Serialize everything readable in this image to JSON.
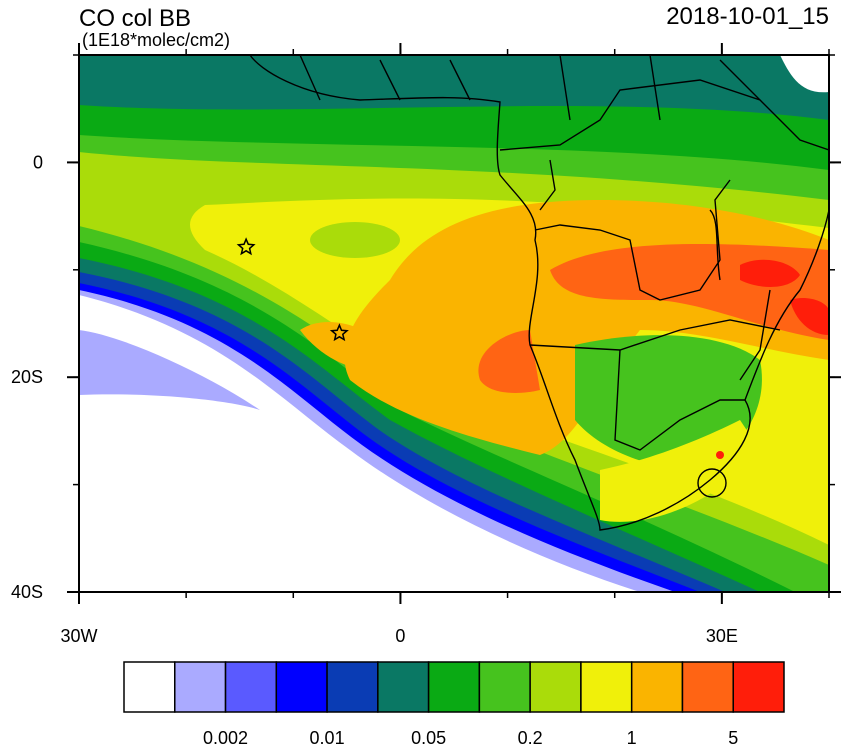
{
  "map": {
    "title": "CO col BB",
    "units": "(1E18*molec/cm2)",
    "date": "2018-10-01_15",
    "xlim": [
      -30,
      40
    ],
    "ylim": [
      -40,
      10
    ],
    "xticks": [
      {
        "value": -30,
        "label": "30W"
      },
      0,
      {
        "value": 30,
        "label": "30E"
      }
    ],
    "yticks": [
      0,
      {
        "value": -20,
        "label": "20S"
      },
      {
        "value": -40,
        "label": "40S"
      }
    ],
    "minor_ticks_step": 10,
    "markers": [
      {
        "lon": -14.4,
        "lat": -7.9
      },
      {
        "lon": -5.7,
        "lat": -15.9
      }
    ],
    "colorbar": {
      "colors": [
        "#ffffff",
        "#aaaaff",
        "#5a5aff",
        "#0000ff",
        "#0a3cb4",
        "#0a7864",
        "#0aaa14",
        "#46c31e",
        "#aadc0a",
        "#f0f00a",
        "#fab400",
        "#ff6414",
        "#ff1e0a"
      ],
      "labels": [
        "0.002",
        "0.01",
        "0.05",
        "0.2",
        "1",
        "5"
      ]
    }
  }
}
